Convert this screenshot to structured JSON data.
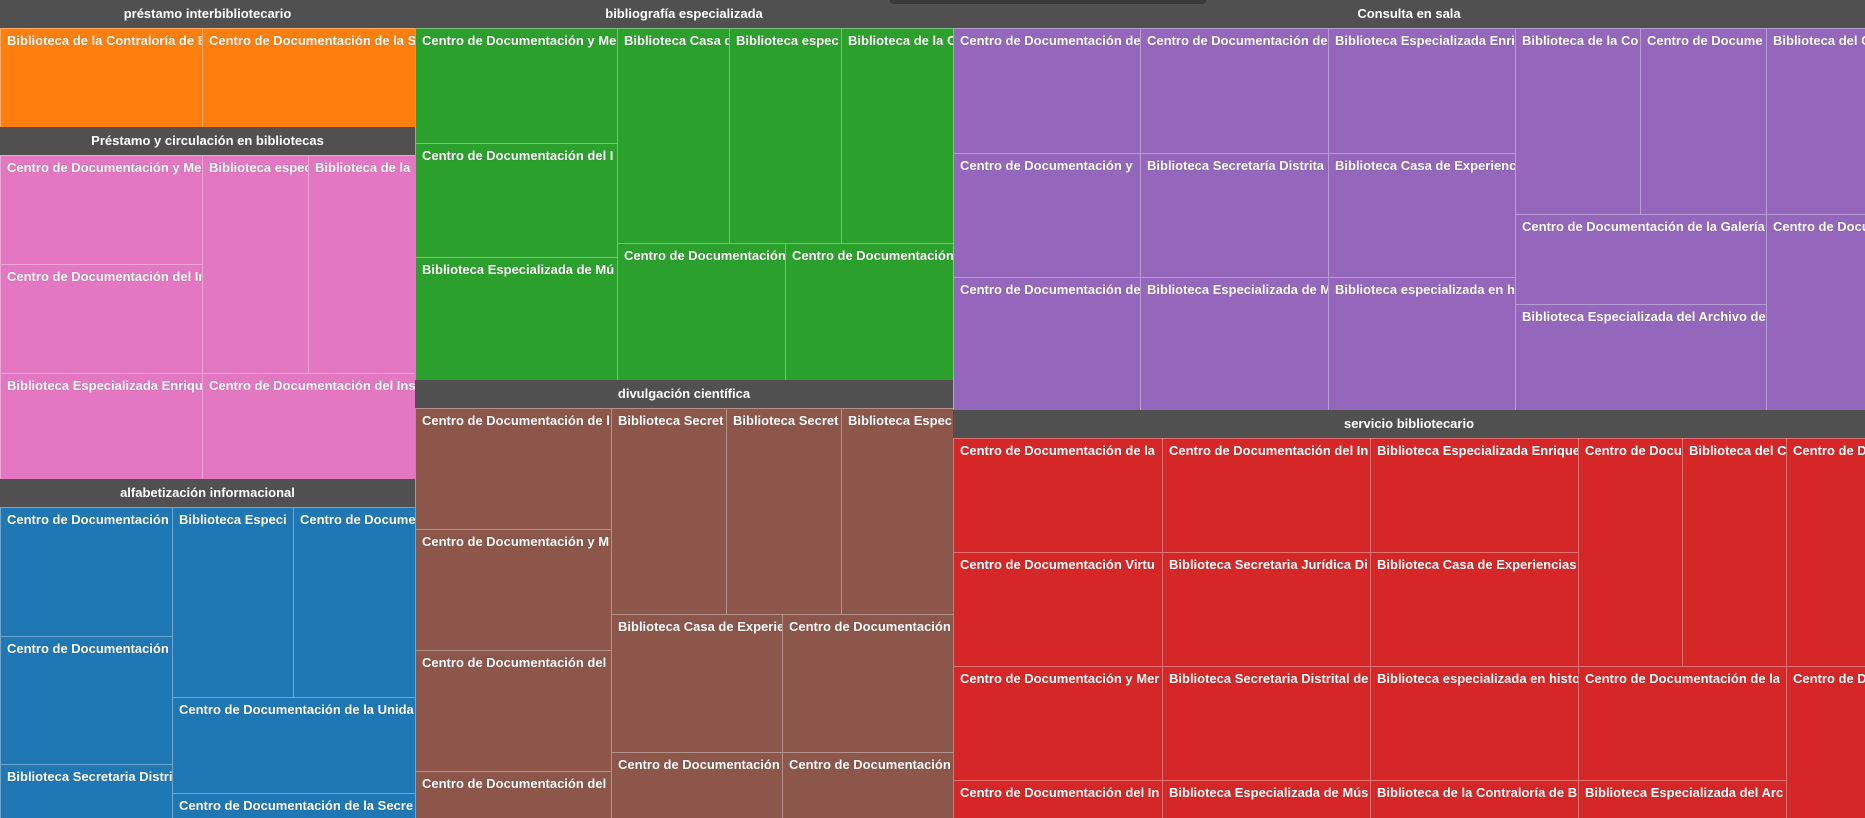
{
  "chart_data": {
    "type": "treemap",
    "colors": {
      "préstamo interbibliotecario": "#ff7f0e",
      "Préstamo y circulación en bibliotecas": "#e377c2",
      "alfabetización informacional": "#1f77b4",
      "bibliografía especializada": "#2ca02c",
      "divulgación científica": "#8c564b",
      "Consulta en sala": "#9467bd",
      "servicio bibliotecario": "#d62728"
    },
    "groups": [
      {
        "name": "préstamo interbibliotecario",
        "children": [
          "Biblioteca de la Contraloría de Bo",
          "Centro de Documentación de la S"
        ]
      },
      {
        "name": "Préstamo y circulación en bibliotecas",
        "children": [
          "Centro de Documentación y Mem",
          "Centro de Documentación del Ins",
          "Biblioteca Especializada Enrique",
          "Biblioteca espec",
          "Biblioteca de la",
          "Centro de Documentación del Ins"
        ]
      },
      {
        "name": "alfabetización informacional",
        "children": [
          "Centro de Documentación d",
          "Centro de Documentación d",
          "Biblioteca Secretaria Distrita",
          "Biblioteca Especi",
          "Centro de Docume",
          "Centro de Documentación de la Unida",
          "Centro de Documentación de la Secre"
        ]
      },
      {
        "name": "bibliografía especializada",
        "children": [
          "Centro de Documentación y Me",
          "Centro de Documentación del I",
          "Biblioteca Especializada de Mú",
          "Biblioteca Casa d",
          "Biblioteca espec",
          "Biblioteca de la C",
          "Centro de Documentación",
          "Centro de Documentación"
        ]
      },
      {
        "name": "divulgación científica",
        "children": [
          "Centro de Documentación de l",
          "Centro de Documentación y M",
          "Centro de Documentación del",
          "Centro de Documentación del",
          "Biblioteca Secret",
          "Biblioteca Secret",
          "Biblioteca Espec",
          "Biblioteca Casa de Experie",
          "Centro de Documentación",
          "Centro de Documentación",
          "Centro de Documentación"
        ]
      },
      {
        "name": "Consulta en sala",
        "children": [
          "Centro de Documentación de",
          "Centro de Documentación y",
          "Centro de Documentación de",
          "Centro de Documentación de",
          "Biblioteca Secretaría Distrita",
          "Biblioteca Especializada de M",
          "Biblioteca Especializada Enri",
          "Biblioteca Casa de Experienc",
          "Biblioteca especializada en h",
          "Biblioteca de la Co",
          "Centro de Docume",
          "Centro de Documentación de la Galería",
          "Biblioteca Especializada del Archivo de",
          "Biblioteca del C",
          "Centro de Docu"
        ]
      },
      {
        "name": "servicio bibliotecario",
        "children": [
          "Centro de Documentación de la",
          "Centro de Documentación Virtu",
          "Centro de Documentación y Mer",
          "Centro de Documentación del In",
          "Centro de Documentación del In",
          "Biblioteca Secretaria Jurídica Di",
          "Biblioteca Secretaria Distrital de",
          "Biblioteca Especializada de Mús",
          "Biblioteca Especializada Enrique",
          "Biblioteca Casa de Experiencias",
          "Biblioteca especializada en histo",
          "Biblioteca de la Contraloría de B",
          "Centro de Docu",
          "Biblioteca del C",
          "Centro de Documentación de la",
          "Biblioteca Especializada del Arc",
          "Centro de D",
          "Centro de D"
        ]
      }
    ]
  }
}
